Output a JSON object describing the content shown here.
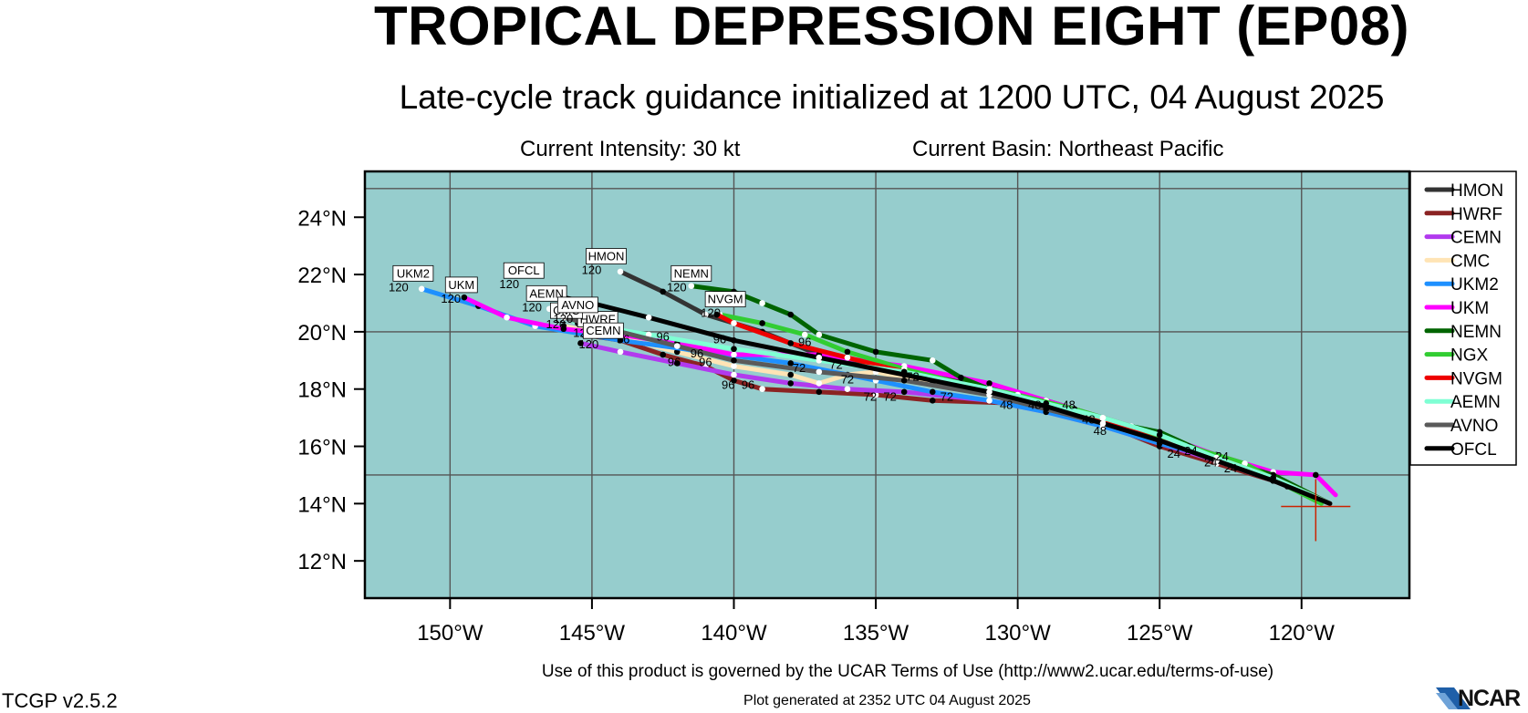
{
  "header": {
    "title": "TROPICAL DEPRESSION EIGHT (EP08)",
    "subtitle": "Late-cycle track guidance initialized at 1200 UTC, 04 August 2025",
    "current_intensity": "Current Intensity: 30 kt",
    "current_basin": "Current Basin: Northeast Pacific"
  },
  "footer": {
    "terms": "Use of this product is governed by the UCAR Terms of Use (http://www2.ucar.edu/terms-of-use)",
    "version": "TCGP v2.5.2",
    "generated": "Plot generated at 2352 UTC   04 August 2025",
    "logo_text": "NCAR"
  },
  "chart_data": {
    "type": "line",
    "title": "TROPICAL DEPRESSION EIGHT (EP08)",
    "subtitle": "Late-cycle track guidance initialized at 1200 UTC, 04 August 2025",
    "xlabel": "",
    "ylabel": "",
    "xlim": [
      -153,
      -116.2
    ],
    "ylim": [
      10.7,
      25.6
    ],
    "grid": true,
    "background_color": "#96cdcd",
    "legend_position": "right",
    "x_ticks": [
      -150,
      -145,
      -140,
      -135,
      -130,
      -125,
      -120
    ],
    "x_tick_labels": [
      "150°W",
      "145°W",
      "140°W",
      "135°W",
      "130°W",
      "125°W",
      "120°W"
    ],
    "y_ticks": [
      12,
      14,
      16,
      18,
      20,
      22,
      24
    ],
    "y_tick_labels": [
      "12°N",
      "14°N",
      "16°N",
      "18°N",
      "20°N",
      "22°N",
      "24°N"
    ],
    "grid_x": [
      -150,
      -145,
      -140,
      -135,
      -130,
      -125,
      -120
    ],
    "grid_y": [
      15,
      20,
      25
    ],
    "current_position": {
      "lon": -119.5,
      "lat": 13.9,
      "color": "#cc2200"
    },
    "series": [
      {
        "name": "HMON",
        "color": "#333333",
        "width": 5,
        "points": [
          [
            -119,
            14
          ],
          [
            -121,
            14.8
          ],
          [
            -123,
            15.6
          ],
          [
            -125,
            16.3
          ],
          [
            -127,
            17
          ],
          [
            -129,
            17.6
          ],
          [
            -131,
            18.1
          ],
          [
            -134,
            18.6
          ],
          [
            -137,
            19.2
          ],
          [
            -139,
            20
          ],
          [
            -141,
            20.6
          ],
          [
            -142.5,
            21.4
          ],
          [
            -144,
            22.1
          ]
        ],
        "label": {
          "text": "HMON",
          "lon": -144.5,
          "lat": 22.4
        },
        "end_label": "120"
      },
      {
        "name": "HWRF",
        "color": "#8b2323",
        "width": 5,
        "points": [
          [
            -119,
            14
          ],
          [
            -121,
            14.8
          ],
          [
            -123,
            15.4
          ],
          [
            -125,
            16
          ],
          [
            -126.5,
            16.6
          ],
          [
            -128,
            17.1
          ],
          [
            -130,
            17.5
          ],
          [
            -133,
            17.6
          ],
          [
            -135,
            17.8
          ],
          [
            -137,
            17.9
          ],
          [
            -139,
            18
          ],
          [
            -140,
            18.3
          ],
          [
            -141,
            18.8
          ],
          [
            -142.5,
            19.2
          ],
          [
            -144,
            19.7
          ],
          [
            -145.3,
            19.9
          ]
        ],
        "label": {
          "text": "HWRF",
          "lon": -144.8,
          "lat": 20.2
        },
        "end_label": "120"
      },
      {
        "name": "CEMN",
        "color": "#b23aee",
        "width": 5,
        "points": [
          [
            -119,
            14
          ],
          [
            -121,
            14.8
          ],
          [
            -123,
            15.5
          ],
          [
            -125,
            16.1
          ],
          [
            -127,
            16.7
          ],
          [
            -129,
            17.2
          ],
          [
            -131,
            17.6
          ],
          [
            -134,
            17.9
          ],
          [
            -136,
            18
          ],
          [
            -138,
            18.2
          ],
          [
            -140,
            18.5
          ],
          [
            -142,
            18.9
          ],
          [
            -144,
            19.3
          ],
          [
            -145.4,
            19.6
          ]
        ],
        "label": {
          "text": "CEMN",
          "lon": -144.6,
          "lat": 19.8
        },
        "end_label": "120"
      },
      {
        "name": "CMC",
        "color": "#ffe4b5",
        "width": 5,
        "points": [
          [
            -119,
            14
          ],
          [
            -121,
            14.8
          ],
          [
            -123,
            15.6
          ],
          [
            -125,
            16.3
          ],
          [
            -127,
            16.9
          ],
          [
            -129,
            17.4
          ],
          [
            -131,
            17.8
          ],
          [
            -133,
            18.2
          ],
          [
            -135,
            18.6
          ],
          [
            -136,
            18.5
          ],
          [
            -137,
            18.2
          ],
          [
            -138,
            18.5
          ],
          [
            -140,
            18.8
          ],
          [
            -142,
            19.3
          ],
          [
            -144,
            19.8
          ],
          [
            -146,
            20.2
          ]
        ],
        "label": {
          "text": "CMC",
          "lon": -145.9,
          "lat": 20.5
        },
        "end_label": "120"
      },
      {
        "name": "UKM2",
        "color": "#1e90ff",
        "width": 5,
        "points": [
          [
            -119,
            14
          ],
          [
            -121,
            14.9
          ],
          [
            -123,
            15.6
          ],
          [
            -125,
            16.1
          ],
          [
            -127,
            16.7
          ],
          [
            -129,
            17.2
          ],
          [
            -131,
            17.6
          ],
          [
            -133,
            17.9
          ],
          [
            -135,
            18.3
          ],
          [
            -138,
            18.9
          ],
          [
            -141,
            19.3
          ],
          [
            -144,
            19.7
          ],
          [
            -147,
            20.2
          ],
          [
            -149,
            20.9
          ],
          [
            -151,
            21.5
          ]
        ],
        "label": {
          "text": "UKM2",
          "lon": -151.3,
          "lat": 21.8
        },
        "end_label": "120"
      },
      {
        "name": "UKM",
        "color": "#ff00ff",
        "width": 5,
        "points": [
          [
            -118.8,
            14.3
          ],
          [
            -119.5,
            15
          ],
          [
            -121,
            15.1
          ],
          [
            -123,
            15.7
          ],
          [
            -125,
            16.4
          ],
          [
            -127,
            17
          ],
          [
            -129,
            17.6
          ],
          [
            -131,
            18.2
          ],
          [
            -134,
            18.8
          ],
          [
            -137,
            19.2
          ],
          [
            -140,
            19.2
          ],
          [
            -142,
            19.6
          ],
          [
            -144,
            19.9
          ],
          [
            -146,
            20.1
          ],
          [
            -148,
            20.5
          ],
          [
            -149.5,
            21.2
          ]
        ],
        "label": {
          "text": "UKM",
          "lon": -149.6,
          "lat": 21.4
        },
        "end_label": "120"
      },
      {
        "name": "NEMN",
        "color": "#006400",
        "width": 5,
        "points": [
          [
            -119,
            14
          ],
          [
            -121,
            15
          ],
          [
            -123,
            15.6
          ],
          [
            -125,
            16.5
          ],
          [
            -127,
            16.9
          ],
          [
            -129,
            17.4
          ],
          [
            -131,
            18
          ],
          [
            -132,
            18.4
          ],
          [
            -133,
            19
          ],
          [
            -135,
            19.3
          ],
          [
            -137,
            19.9
          ],
          [
            -138,
            20.6
          ],
          [
            -139,
            21
          ],
          [
            -140,
            21.4
          ],
          [
            -141.5,
            21.6
          ]
        ],
        "label": {
          "text": "NEMN",
          "lon": -141.5,
          "lat": 21.8
        },
        "end_label": "120"
      },
      {
        "name": "NGX",
        "color": "#32cd32",
        "width": 5,
        "points": [
          [
            -119.3,
            14
          ],
          [
            -120.5,
            14.6
          ],
          [
            -122,
            15.4
          ],
          [
            -124,
            16
          ],
          [
            -126,
            16.7
          ],
          [
            -128,
            17.3
          ],
          [
            -130,
            17.8
          ],
          [
            -132,
            18.2
          ],
          [
            -134,
            18.7
          ],
          [
            -136,
            19.3
          ],
          [
            -137.5,
            19.9
          ],
          [
            -139,
            20.3
          ],
          [
            -140.5,
            20.6
          ]
        ],
        "label": null,
        "end_label": null
      },
      {
        "name": "NVGM",
        "color": "#ee0000",
        "width": 5,
        "points": [
          [
            -119,
            14
          ],
          [
            -121,
            14.9
          ],
          [
            -123,
            15.6
          ],
          [
            -125,
            16.2
          ],
          [
            -127,
            16.9
          ],
          [
            -129,
            17.4
          ],
          [
            -131,
            17.9
          ],
          [
            -134,
            18.6
          ],
          [
            -136,
            19.1
          ],
          [
            -138,
            19.6
          ],
          [
            -140,
            20.3
          ],
          [
            -140.6,
            20.6
          ]
        ],
        "label": {
          "text": "NVGM",
          "lon": -140.3,
          "lat": 20.9
        },
        "end_label": "120"
      },
      {
        "name": "AEMN",
        "color": "#7fffd4",
        "width": 5,
        "points": [
          [
            -119,
            14
          ],
          [
            -121,
            14.9
          ],
          [
            -123,
            15.6
          ],
          [
            -125,
            16.4
          ],
          [
            -127,
            17
          ],
          [
            -129,
            17.5
          ],
          [
            -131,
            18
          ],
          [
            -134,
            18.6
          ],
          [
            -137,
            19
          ],
          [
            -140,
            19.4
          ],
          [
            -143,
            19.9
          ],
          [
            -145.5,
            20.3
          ],
          [
            -146.5,
            20.8
          ]
        ],
        "label": {
          "text": "AEMN",
          "lon": -146.6,
          "lat": 21.1
        },
        "end_label": "120"
      },
      {
        "name": "AVNO",
        "color": "#5a5a5a",
        "width": 5,
        "points": [
          [
            -119,
            14
          ],
          [
            -121,
            14.8
          ],
          [
            -123,
            15.5
          ],
          [
            -125,
            16.2
          ],
          [
            -127,
            16.8
          ],
          [
            -129,
            17.3
          ],
          [
            -131,
            17.8
          ],
          [
            -134,
            18.3
          ],
          [
            -137,
            18.6
          ],
          [
            -140,
            19
          ],
          [
            -142,
            19.5
          ],
          [
            -144,
            20
          ],
          [
            -146,
            20.5
          ]
        ],
        "label": {
          "text": "AVNO",
          "lon": -145.5,
          "lat": 20.7
        },
        "end_label": "120"
      },
      {
        "name": "OFCL",
        "color": "#000000",
        "width": 5,
        "points": [
          [
            -119,
            14
          ],
          [
            -121,
            14.8
          ],
          [
            -123,
            15.5
          ],
          [
            -125,
            16.2
          ],
          [
            -127,
            16.8
          ],
          [
            -129,
            17.4
          ],
          [
            -131,
            17.9
          ],
          [
            -134,
            18.5
          ],
          [
            -137,
            19.1
          ],
          [
            -140,
            19.7
          ],
          [
            -143,
            20.5
          ],
          [
            -145,
            21
          ],
          [
            -147,
            21.4
          ]
        ],
        "label": {
          "text": "OFCL",
          "lon": -147.4,
          "lat": 21.9
        },
        "end_label": "120"
      }
    ],
    "tau_labels": [
      {
        "text": "24",
        "lon": -124.5,
        "lat": 15.6
      },
      {
        "text": "24",
        "lon": -123.9,
        "lat": 15.7
      },
      {
        "text": "24",
        "lon": -123.2,
        "lat": 15.3
      },
      {
        "text": "24",
        "lon": -122.8,
        "lat": 15.5
      },
      {
        "text": "24",
        "lon": -122.5,
        "lat": 15.1
      },
      {
        "text": "48",
        "lon": -127.5,
        "lat": 16.8
      },
      {
        "text": "48",
        "lon": -127.1,
        "lat": 16.4
      },
      {
        "text": "48",
        "lon": -128.2,
        "lat": 17.3
      },
      {
        "text": "48",
        "lon": -129.4,
        "lat": 17.3
      },
      {
        "text": "48",
        "lon": -130.4,
        "lat": 17.3
      },
      {
        "text": "72",
        "lon": -132.5,
        "lat": 17.6
      },
      {
        "text": "72",
        "lon": -133.7,
        "lat": 18.3
      },
      {
        "text": "72",
        "lon": -134.5,
        "lat": 17.6
      },
      {
        "text": "72",
        "lon": -135.2,
        "lat": 17.6
      },
      {
        "text": "72",
        "lon": -136,
        "lat": 18.2
      },
      {
        "text": "72",
        "lon": -136.4,
        "lat": 18.7
      },
      {
        "text": "72",
        "lon": -137.7,
        "lat": 18.6
      },
      {
        "text": "96",
        "lon": -137.5,
        "lat": 19.5
      },
      {
        "text": "96",
        "lon": -139.5,
        "lat": 18
      },
      {
        "text": "96",
        "lon": -140.2,
        "lat": 18
      },
      {
        "text": "96",
        "lon": -141,
        "lat": 18.8
      },
      {
        "text": "96",
        "lon": -141.3,
        "lat": 19.1
      },
      {
        "text": "96",
        "lon": -142.1,
        "lat": 18.8
      },
      {
        "text": "96",
        "lon": -142.5,
        "lat": 19.7
      },
      {
        "text": "96",
        "lon": -143.9,
        "lat": 19.6
      },
      {
        "text": "96",
        "lon": -140.5,
        "lat": 19.6
      }
    ]
  }
}
